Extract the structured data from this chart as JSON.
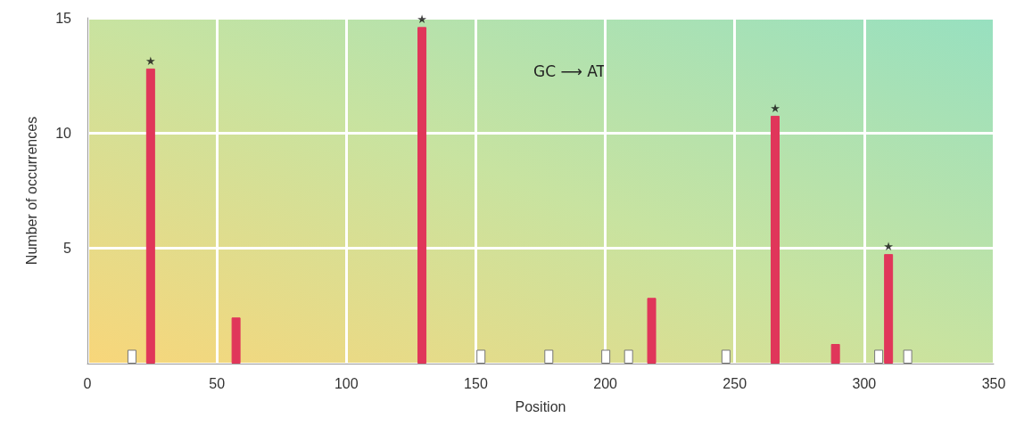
{
  "chart_data": {
    "type": "bar",
    "xlabel": "Position",
    "ylabel": "Number of occurrences",
    "series": [
      {
        "color": "#ffffff",
        "x": [
          17.2,
          152,
          178.2,
          200.2,
          209,
          246.6,
          305.6,
          316.8
        ],
        "values": [
          0.6,
          0.6,
          0.6,
          0.6,
          0.6,
          0.6,
          0.6,
          0.6
        ]
      },
      {
        "color": "#e0365a",
        "x": [
          24.4,
          57.4,
          129.2,
          217.9,
          265.6,
          288.9,
          309.4
        ],
        "values": [
          12.8,
          2.0,
          14.6,
          2.85,
          10.75,
          0.85,
          4.75
        ]
      }
    ],
    "xlim": [
      0,
      350
    ],
    "xticks": [
      0,
      50,
      100,
      150,
      200,
      250,
      300,
      350
    ],
    "ylim": [
      0,
      15
    ],
    "yticks": [
      {
        "value": 0,
        "label": null
      },
      5,
      10,
      15
    ],
    "grid": true,
    "annotations": [
      {
        "text": "★",
        "x": 24.4,
        "y": 12.8
      },
      {
        "text": "★",
        "x": 129.2,
        "y": 14.6
      },
      {
        "text": "★",
        "x": 265.6,
        "y": 10.75
      },
      {
        "text": "★",
        "x": 309.4,
        "y": 4.75
      },
      "GC ⟶ AT"
    ]
  }
}
